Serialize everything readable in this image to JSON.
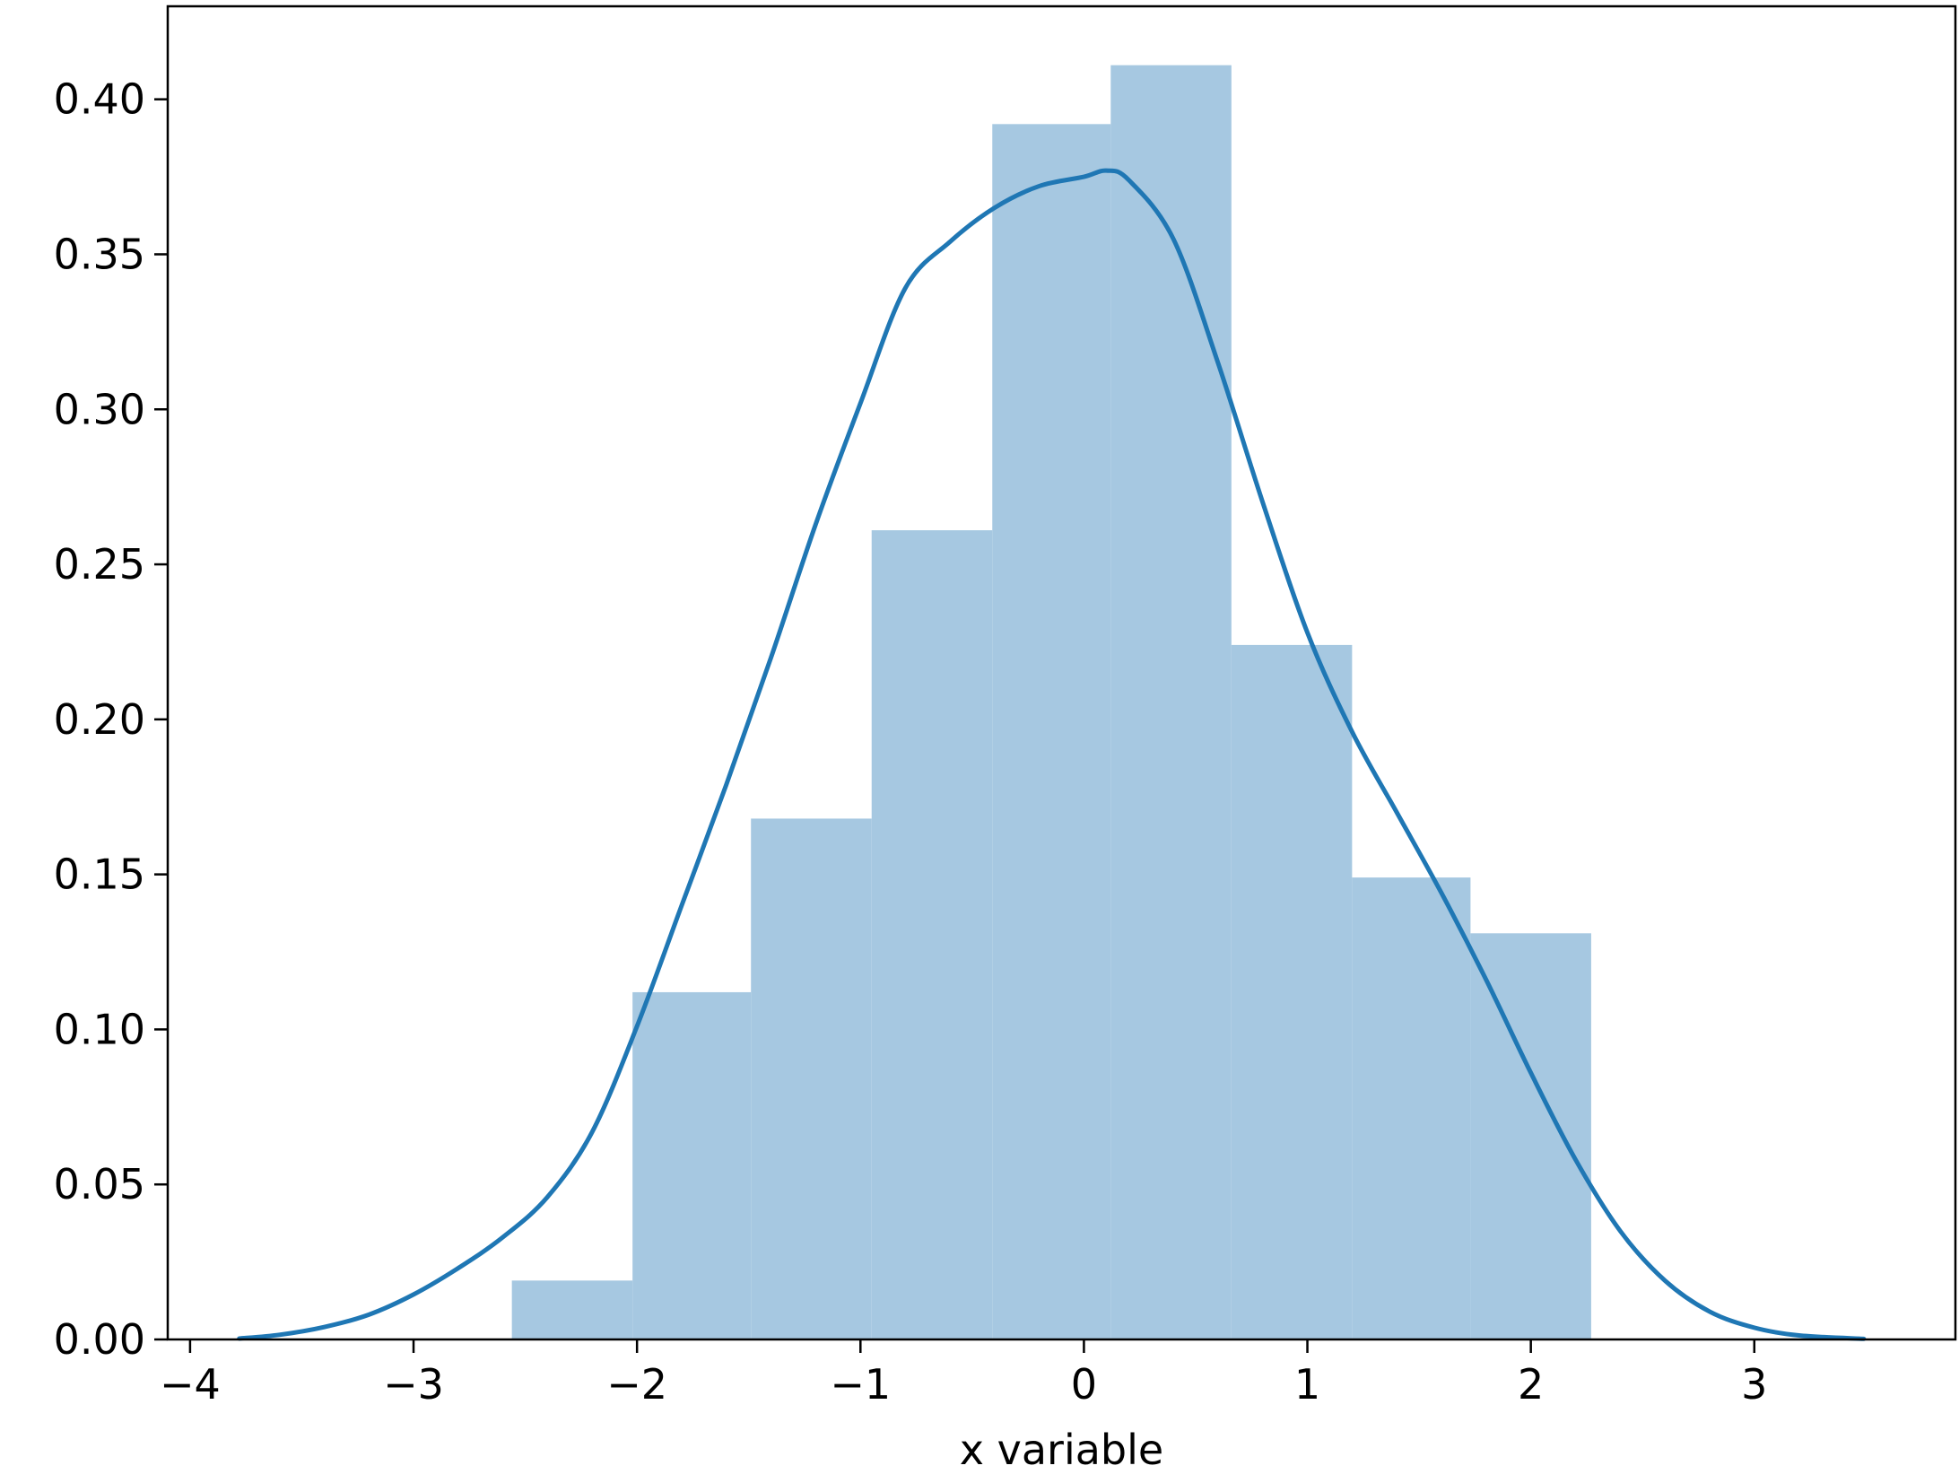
{
  "chart_data": {
    "type": "bar",
    "title": "",
    "xlabel": "x variable",
    "ylabel": "",
    "xlim": [
      -4.1,
      3.9
    ],
    "ylim": [
      0,
      0.43
    ],
    "xticks": [
      {
        "value": -4,
        "label": "−4"
      },
      {
        "value": -3,
        "label": "−3"
      },
      {
        "value": -2,
        "label": "−2"
      },
      {
        "value": -1,
        "label": "−1"
      },
      {
        "value": 0,
        "label": "0"
      },
      {
        "value": 1,
        "label": "1"
      },
      {
        "value": 2,
        "label": "2"
      },
      {
        "value": 3,
        "label": "3"
      }
    ],
    "yticks": [
      {
        "value": 0.0,
        "label": "0.00"
      },
      {
        "value": 0.05,
        "label": "0.05"
      },
      {
        "value": 0.1,
        "label": "0.10"
      },
      {
        "value": 0.15,
        "label": "0.15"
      },
      {
        "value": 0.2,
        "label": "0.20"
      },
      {
        "value": 0.25,
        "label": "0.25"
      },
      {
        "value": 0.3,
        "label": "0.30"
      },
      {
        "value": 0.35,
        "label": "0.35"
      },
      {
        "value": 0.4,
        "label": "0.40"
      }
    ],
    "grid": false,
    "histogram": {
      "bin_edges": [
        -2.56,
        -2.02,
        -1.49,
        -0.95,
        -0.41,
        0.12,
        0.66,
        1.2,
        1.73,
        2.27
      ],
      "density": [
        0.019,
        0.112,
        0.168,
        0.261,
        0.392,
        0.411,
        0.224,
        0.149,
        0.131
      ],
      "color": "#a6c8e1"
    },
    "kde": {
      "color": "#1f77b4",
      "x": [
        -3.78,
        -3.6,
        -3.4,
        -3.2,
        -3.0,
        -2.8,
        -2.6,
        -2.4,
        -2.2,
        -2.0,
        -1.8,
        -1.6,
        -1.4,
        -1.2,
        -1.0,
        -0.8,
        -0.6,
        -0.4,
        -0.2,
        0.0,
        0.1,
        0.2,
        0.4,
        0.6,
        0.8,
        1.0,
        1.2,
        1.4,
        1.6,
        1.8,
        2.0,
        2.2,
        2.4,
        2.6,
        2.8,
        3.0,
        3.2,
        3.49
      ],
      "y": [
        0.0003,
        0.0015,
        0.004,
        0.008,
        0.0145,
        0.023,
        0.033,
        0.046,
        0.067,
        0.101,
        0.14,
        0.179,
        0.22,
        0.263,
        0.302,
        0.339,
        0.354,
        0.365,
        0.372,
        0.375,
        0.377,
        0.374,
        0.355,
        0.315,
        0.27,
        0.228,
        0.196,
        0.17,
        0.144,
        0.116,
        0.086,
        0.058,
        0.035,
        0.019,
        0.009,
        0.0038,
        0.0013,
        0.0002
      ]
    }
  }
}
